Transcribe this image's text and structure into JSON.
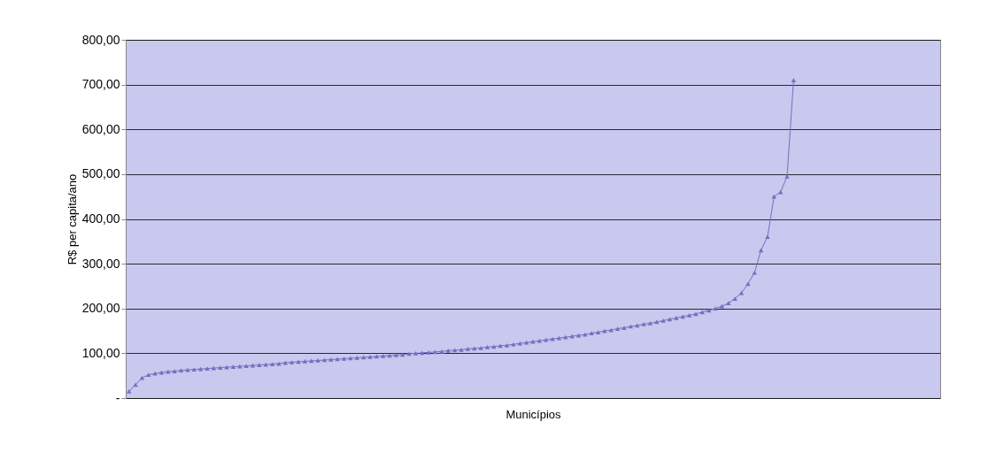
{
  "chart_data": {
    "type": "line",
    "xlabel": "Municípios",
    "ylabel": "R$ per capita/ano",
    "categories": [
      null,
      null,
      null,
      null,
      null,
      null,
      null,
      null,
      null,
      null,
      null,
      null,
      null,
      null,
      null,
      null,
      null,
      null,
      null,
      null,
      null,
      null,
      null,
      null,
      null,
      null,
      null,
      null,
      null,
      null,
      null,
      null,
      null,
      null,
      null,
      null,
      null,
      null,
      null,
      null,
      null,
      null,
      null,
      null,
      null,
      null,
      null,
      null,
      null,
      null,
      null,
      null,
      null,
      null,
      null,
      null,
      null,
      null,
      null,
      null,
      null,
      null,
      null,
      null,
      null,
      null,
      null,
      null,
      null,
      null,
      null,
      null,
      null,
      null,
      null,
      null,
      null,
      null,
      null,
      null,
      null,
      null,
      null,
      null,
      null,
      null,
      null,
      null,
      null,
      null,
      null,
      null,
      null,
      null,
      null,
      null,
      null,
      null,
      null,
      null,
      null,
      null,
      null,
      null,
      null,
      null,
      null,
      null,
      null,
      null,
      null,
      null,
      null,
      null,
      null,
      null,
      null,
      null,
      null,
      null,
      null,
      null,
      null,
      null,
      null
    ],
    "series": [
      {
        "color": "#7a6cc0",
        "values": [
          15,
          30,
          45,
          52,
          55,
          57,
          59,
          60,
          62,
          63,
          64,
          65,
          66,
          67,
          68,
          69,
          70,
          71,
          72,
          73,
          74,
          75,
          76,
          77,
          79,
          80,
          81,
          82,
          83,
          84,
          85,
          86,
          87,
          88,
          89,
          90,
          91,
          92,
          93,
          94,
          95,
          96,
          97,
          99,
          100,
          101,
          102,
          103,
          104,
          106,
          107,
          108,
          110,
          111,
          112,
          114,
          115,
          117,
          118,
          120,
          122,
          124,
          126,
          128,
          130,
          132,
          134,
          136,
          138,
          140,
          142,
          145,
          147,
          150,
          152,
          155,
          157,
          160,
          162,
          165,
          167,
          170,
          173,
          176,
          179,
          182,
          185,
          188,
          192,
          196,
          200,
          205,
          212,
          222,
          235,
          255,
          280,
          330,
          360,
          450,
          460,
          495,
          710,
          null,
          null,
          null,
          null,
          null,
          null,
          null,
          null,
          null,
          null,
          null,
          null,
          null,
          null,
          null,
          null,
          null,
          null,
          null,
          null,
          null,
          null
        ]
      }
    ],
    "ylim": [
      0,
      800
    ],
    "yticks": [
      {
        "value": 0,
        "label": "-"
      },
      {
        "value": 100,
        "label": "100,00"
      },
      {
        "value": 200,
        "label": "200,00"
      },
      {
        "value": 300,
        "label": "300,00"
      },
      {
        "value": 400,
        "label": "400,00"
      },
      {
        "value": 500,
        "label": "500,00"
      },
      {
        "value": 600,
        "label": "600,00"
      },
      {
        "value": 700,
        "label": "700,00"
      },
      {
        "value": 800,
        "label": "800,00"
      }
    ],
    "grid": "y",
    "marker": "triangle",
    "line_style": "solid",
    "tick_labels": "y"
  }
}
